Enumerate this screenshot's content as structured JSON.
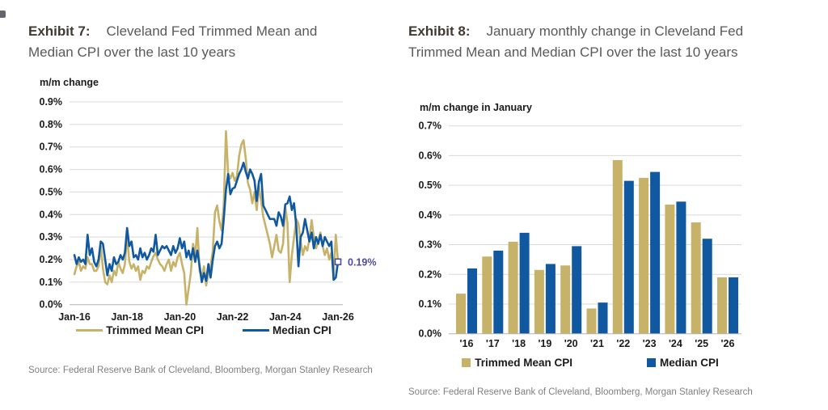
{
  "colors": {
    "trimmed_mean": "#c7b269",
    "median": "#10589f",
    "annotation": "#4f4b9e",
    "grid": "#d9d9d9",
    "axis_line": "#b3b3b3",
    "axis_text": "#1a1a1a",
    "exhibit_label": "#403a33",
    "title_text": "#58595b",
    "source_text": "#7f7f7f"
  },
  "exhibit7": {
    "label": "Exhibit 7:",
    "title": "Cleveland Fed Trimmed Mean and Median CPI over the last 10 years",
    "axis_title": "m/m change",
    "legend": [
      {
        "label": "Trimmed Mean CPI"
      },
      {
        "label": "Median CPI"
      }
    ],
    "annotation": "0.19%",
    "source": "Source: Federal Reserve Bank of Cleveland, Bloomberg, Morgan Stanley Research"
  },
  "exhibit8": {
    "label": "Exhibit 8:",
    "title": "January monthly change in Cleveland Fed Trimmed Mean and Median CPI over the last 10 years",
    "axis_title": "m/m change in January",
    "legend": [
      {
        "label": "Trimmed Mean CPI"
      },
      {
        "label": "Median CPI"
      }
    ],
    "source": "Source: Federal Reserve Bank of Cleveland, Bloomberg, Morgan Stanley Research"
  },
  "chart_data": [
    {
      "type": "line",
      "title": "Exhibit 7: Cleveland Fed Trimmed Mean and Median CPI over the last 10 years",
      "ylabel": "m/m change",
      "unit": "% m/m",
      "x_start": "Jan-16",
      "x_end": "Jan-26",
      "x_frequency": "monthly",
      "x_tick_labels": [
        "Jan-16",
        "Jan-18",
        "Jan-20",
        "Jan-22",
        "Jan-24",
        "Jan-26"
      ],
      "x_tick_month_index": [
        0,
        24,
        48,
        72,
        96,
        120
      ],
      "ylim": [
        0.0,
        0.9
      ],
      "ytick_step": 0.1,
      "ytick_labels": [
        "0.0%",
        "0.1%",
        "0.2%",
        "0.3%",
        "0.4%",
        "0.5%",
        "0.6%",
        "0.7%",
        "0.8%",
        "0.9%"
      ],
      "grid": true,
      "legend_position": "bottom",
      "series": [
        {
          "name": "Trimmed Mean CPI",
          "color": "#c7b269",
          "values": [
            0.135,
            0.17,
            0.19,
            0.15,
            0.17,
            0.16,
            0.21,
            0.18,
            0.18,
            0.15,
            0.15,
            0.17,
            0.26,
            0.16,
            0.1,
            0.09,
            0.13,
            0.1,
            0.15,
            0.13,
            0.19,
            0.16,
            0.14,
            0.18,
            0.31,
            0.19,
            0.16,
            0.18,
            0.15,
            0.17,
            0.11,
            0.15,
            0.14,
            0.17,
            0.16,
            0.19,
            0.215,
            0.23,
            0.2,
            0.18,
            0.17,
            0.15,
            0.18,
            0.2,
            0.15,
            0.19,
            0.17,
            0.21,
            0.23,
            0.18,
            0.14,
            0.0,
            0.07,
            0.14,
            0.27,
            0.22,
            0.34,
            0.15,
            0.12,
            0.17,
            0.085,
            0.14,
            0.17,
            0.24,
            0.41,
            0.44,
            0.37,
            0.33,
            0.44,
            0.77,
            0.58,
            0.56,
            0.585,
            0.55,
            0.57,
            0.66,
            0.71,
            0.73,
            0.65,
            0.54,
            0.51,
            0.45,
            0.5,
            0.42,
            0.525,
            0.46,
            0.39,
            0.35,
            0.31,
            0.27,
            0.21,
            0.26,
            0.31,
            0.24,
            0.23,
            0.27,
            0.435,
            0.36,
            0.1,
            0.22,
            0.3,
            0.38,
            0.36,
            0.28,
            0.22,
            0.26,
            0.24,
            0.29,
            0.375,
            0.3,
            0.25,
            0.28,
            0.32,
            0.26,
            0.22,
            0.25,
            0.2,
            0.23,
            0.13,
            0.31,
            0.19
          ]
        },
        {
          "name": "Median CPI",
          "color": "#10589f",
          "values": [
            0.22,
            0.18,
            0.21,
            0.19,
            0.2,
            0.18,
            0.31,
            0.22,
            0.25,
            0.19,
            0.17,
            0.2,
            0.28,
            0.27,
            0.2,
            0.13,
            0.18,
            0.15,
            0.21,
            0.18,
            0.19,
            0.22,
            0.2,
            0.23,
            0.34,
            0.26,
            0.28,
            0.21,
            0.22,
            0.2,
            0.25,
            0.21,
            0.23,
            0.2,
            0.22,
            0.25,
            0.235,
            0.31,
            0.22,
            0.24,
            0.26,
            0.25,
            0.26,
            0.24,
            0.22,
            0.26,
            0.23,
            0.25,
            0.295,
            0.25,
            0.28,
            0.21,
            0.24,
            0.2,
            0.25,
            0.19,
            0.24,
            0.17,
            0.1,
            0.14,
            0.105,
            0.18,
            0.12,
            0.2,
            0.26,
            0.28,
            0.25,
            0.27,
            0.38,
            0.51,
            0.58,
            0.49,
            0.515,
            0.52,
            0.55,
            0.58,
            0.6,
            0.63,
            0.59,
            0.56,
            0.6,
            0.58,
            0.55,
            0.46,
            0.545,
            0.58,
            0.44,
            0.42,
            0.4,
            0.38,
            0.38,
            0.38,
            0.35,
            0.41,
            0.39,
            0.35,
            0.445,
            0.45,
            0.48,
            0.42,
            0.45,
            0.35,
            0.17,
            0.3,
            0.32,
            0.38,
            0.33,
            0.28,
            0.32,
            0.25,
            0.3,
            0.27,
            0.31,
            0.26,
            0.3,
            0.28,
            0.26,
            0.28,
            0.11,
            0.12,
            0.19
          ]
        }
      ],
      "annotation": {
        "text": "0.19%",
        "series": "Median CPI",
        "x": "Jan-26",
        "value": 0.19
      }
    },
    {
      "type": "bar",
      "title": "Exhibit 8: January monthly change in Cleveland Fed Trimmed Mean and Median CPI over the last 10 years",
      "ylabel": "m/m change in January",
      "unit": "% m/m",
      "categories": [
        "'16",
        "'17",
        "'18",
        "'19",
        "'20",
        "'21",
        "'22",
        "'23",
        "'24",
        "'25",
        "'26"
      ],
      "ylim": [
        0.0,
        0.7
      ],
      "ytick_step": 0.1,
      "ytick_labels": [
        "0.0%",
        "0.1%",
        "0.2%",
        "0.3%",
        "0.4%",
        "0.5%",
        "0.6%",
        "0.7%"
      ],
      "grid": true,
      "legend_position": "bottom",
      "series": [
        {
          "name": "Trimmed Mean CPI",
          "color": "#c7b269",
          "values": [
            0.135,
            0.26,
            0.31,
            0.215,
            0.23,
            0.085,
            0.585,
            0.525,
            0.435,
            0.375,
            0.19
          ]
        },
        {
          "name": "Median CPI",
          "color": "#10589f",
          "values": [
            0.22,
            0.28,
            0.34,
            0.235,
            0.295,
            0.105,
            0.515,
            0.545,
            0.445,
            0.32,
            0.19
          ]
        }
      ]
    }
  ]
}
